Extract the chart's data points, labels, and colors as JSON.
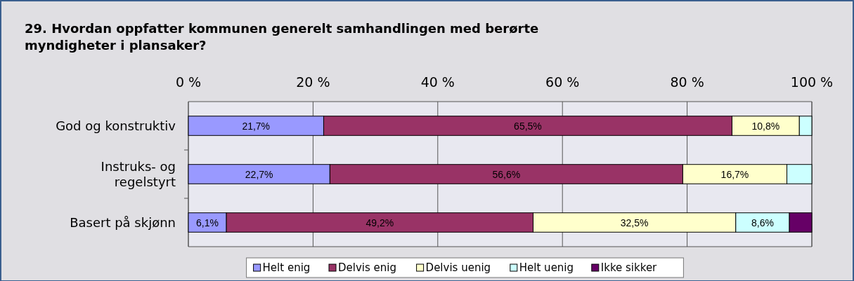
{
  "chart_data": {
    "type": "bar",
    "orientation": "horizontal",
    "stacked": true,
    "title": "29. Hvordan oppfatter kommunen generelt samhandlingen med berørte myndigheter i plansaker?",
    "categories": [
      "God og konstruktiv",
      "Instruks- og regelstyrt",
      "Basert på skjønn"
    ],
    "series": [
      {
        "name": "Helt enig",
        "color": "#9999ff",
        "values": [
          21.7,
          22.7,
          6.1
        ],
        "value_labels": [
          "21,7%",
          "22,7%",
          "6,1%"
        ]
      },
      {
        "name": "Delvis enig",
        "color": "#993366",
        "values": [
          65.5,
          56.6,
          49.2
        ],
        "value_labels": [
          "65,5%",
          "56,6%",
          "49,2%"
        ]
      },
      {
        "name": "Delvis uenig",
        "color": "#ffffcc",
        "values": [
          10.8,
          16.7,
          32.5
        ],
        "value_labels": [
          "10,8%",
          "16,7%",
          "32,5%"
        ]
      },
      {
        "name": "Helt uenig",
        "color": "#ccffff",
        "values": [
          2.0,
          4.0,
          8.6
        ],
        "value_labels": [
          null,
          null,
          "8,6%"
        ]
      },
      {
        "name": "Ikke sikker",
        "color": "#660066",
        "values": [
          0,
          0,
          3.6
        ],
        "value_labels": [
          null,
          null,
          null
        ]
      }
    ],
    "xlim": [
      0,
      100
    ],
    "xticks": [
      {
        "value": 0,
        "label": "0 %"
      },
      {
        "value": 20,
        "label": "20 %"
      },
      {
        "value": 40,
        "label": "40 %"
      },
      {
        "value": 60,
        "label": "60 %"
      },
      {
        "value": 80,
        "label": "80 %"
      },
      {
        "value": 100,
        "label": "100 %"
      }
    ],
    "grid": "x",
    "legend": "bottom"
  }
}
